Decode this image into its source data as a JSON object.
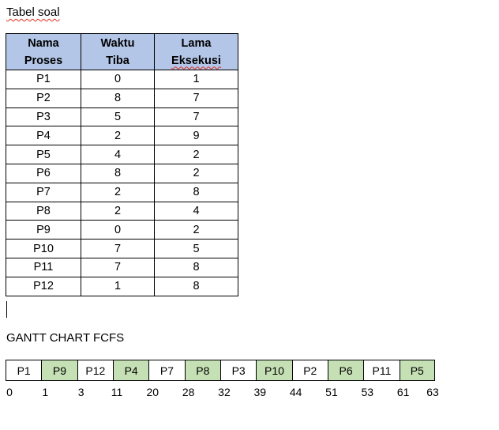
{
  "heading_table": "Tabel soal",
  "table": {
    "headers": [
      [
        "Nama",
        "Proses"
      ],
      [
        "Waktu",
        "Tiba"
      ],
      [
        "Lama",
        "Eksekusi"
      ]
    ],
    "rows": [
      [
        "P1",
        "0",
        "1"
      ],
      [
        "P2",
        "8",
        "7"
      ],
      [
        "P3",
        "5",
        "7"
      ],
      [
        "P4",
        "2",
        "9"
      ],
      [
        "P5",
        "4",
        "2"
      ],
      [
        "P6",
        "8",
        "2"
      ],
      [
        "P7",
        "2",
        "8"
      ],
      [
        "P8",
        "2",
        "4"
      ],
      [
        "P9",
        "0",
        "2"
      ],
      [
        "P10",
        "7",
        "5"
      ],
      [
        "P11",
        "7",
        "8"
      ],
      [
        "P12",
        "1",
        "8"
      ]
    ]
  },
  "heading_gantt": "GANTT CHART FCFS",
  "gantt": {
    "blocks": [
      {
        "label": "P1",
        "shaded": false
      },
      {
        "label": "P9",
        "shaded": true
      },
      {
        "label": "P12",
        "shaded": false
      },
      {
        "label": "P4",
        "shaded": true
      },
      {
        "label": "P7",
        "shaded": false
      },
      {
        "label": "P8",
        "shaded": true
      },
      {
        "label": "P3",
        "shaded": false
      },
      {
        "label": "P10",
        "shaded": true
      },
      {
        "label": "P2",
        "shaded": false
      },
      {
        "label": "P6",
        "shaded": true
      },
      {
        "label": "P11",
        "shaded": false
      },
      {
        "label": "P5",
        "shaded": true
      }
    ],
    "times": [
      "0",
      "1",
      "3",
      "11",
      "20",
      "28",
      "32",
      "39",
      "44",
      "51",
      "53",
      "61",
      "63"
    ]
  },
  "colors": {
    "header_fill": "#b4c6e7",
    "gantt_shade": "#c5e0b4",
    "spellcheck_underline": "#e0301e"
  }
}
